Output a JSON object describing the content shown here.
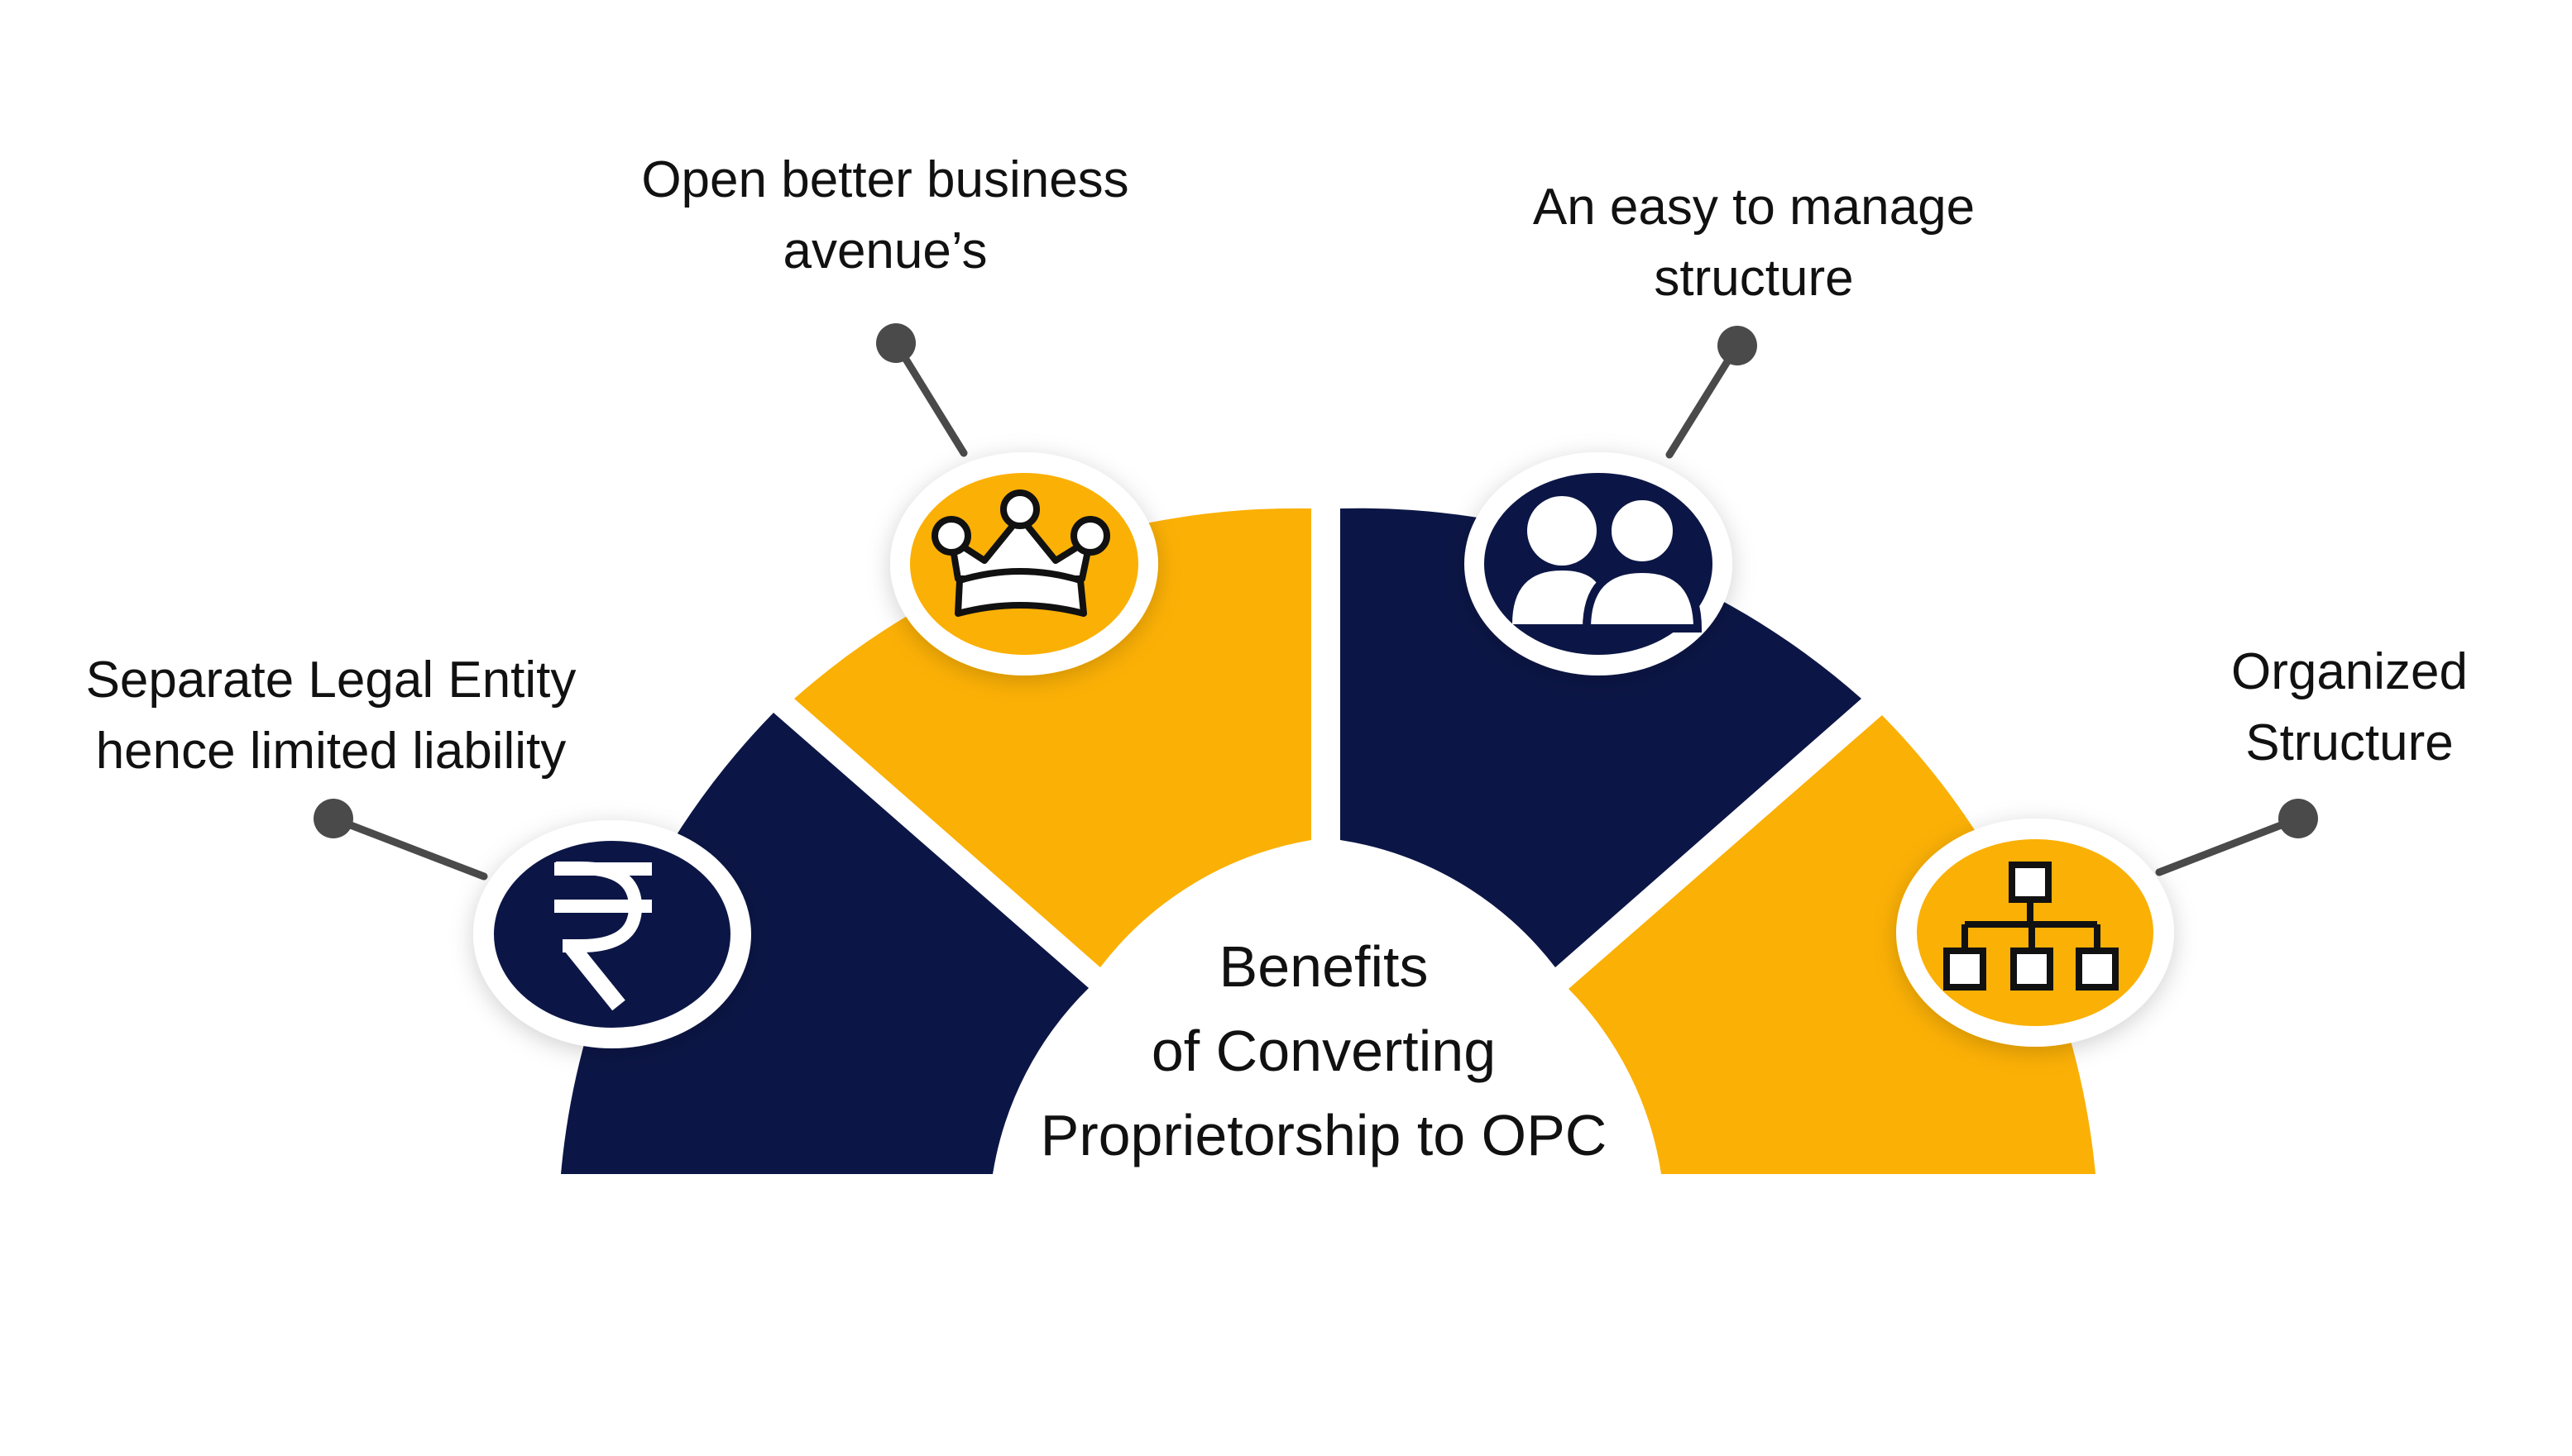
{
  "colors": {
    "navy": "#0c1646",
    "gold": "#fbb005",
    "connector": "#4a4a4a",
    "text": "#111111",
    "background": "#ffffff"
  },
  "center_title": {
    "line1": "Benefits",
    "line2": "of Converting",
    "line3": "Proprietorship to OPC"
  },
  "benefits": [
    {
      "line1": "Separate Legal Entity",
      "line2": "hence limited liability",
      "icon": "rupee-icon",
      "color": "navy"
    },
    {
      "line1": "Open better business",
      "line2": "avenue’s",
      "icon": "crown-icon",
      "color": "gold"
    },
    {
      "line1": "An easy to manage",
      "line2": "structure",
      "icon": "users-icon",
      "color": "navy"
    },
    {
      "line1": "Organized",
      "line2": "Structure",
      "icon": "hierarchy-icon",
      "color": "gold"
    }
  ]
}
